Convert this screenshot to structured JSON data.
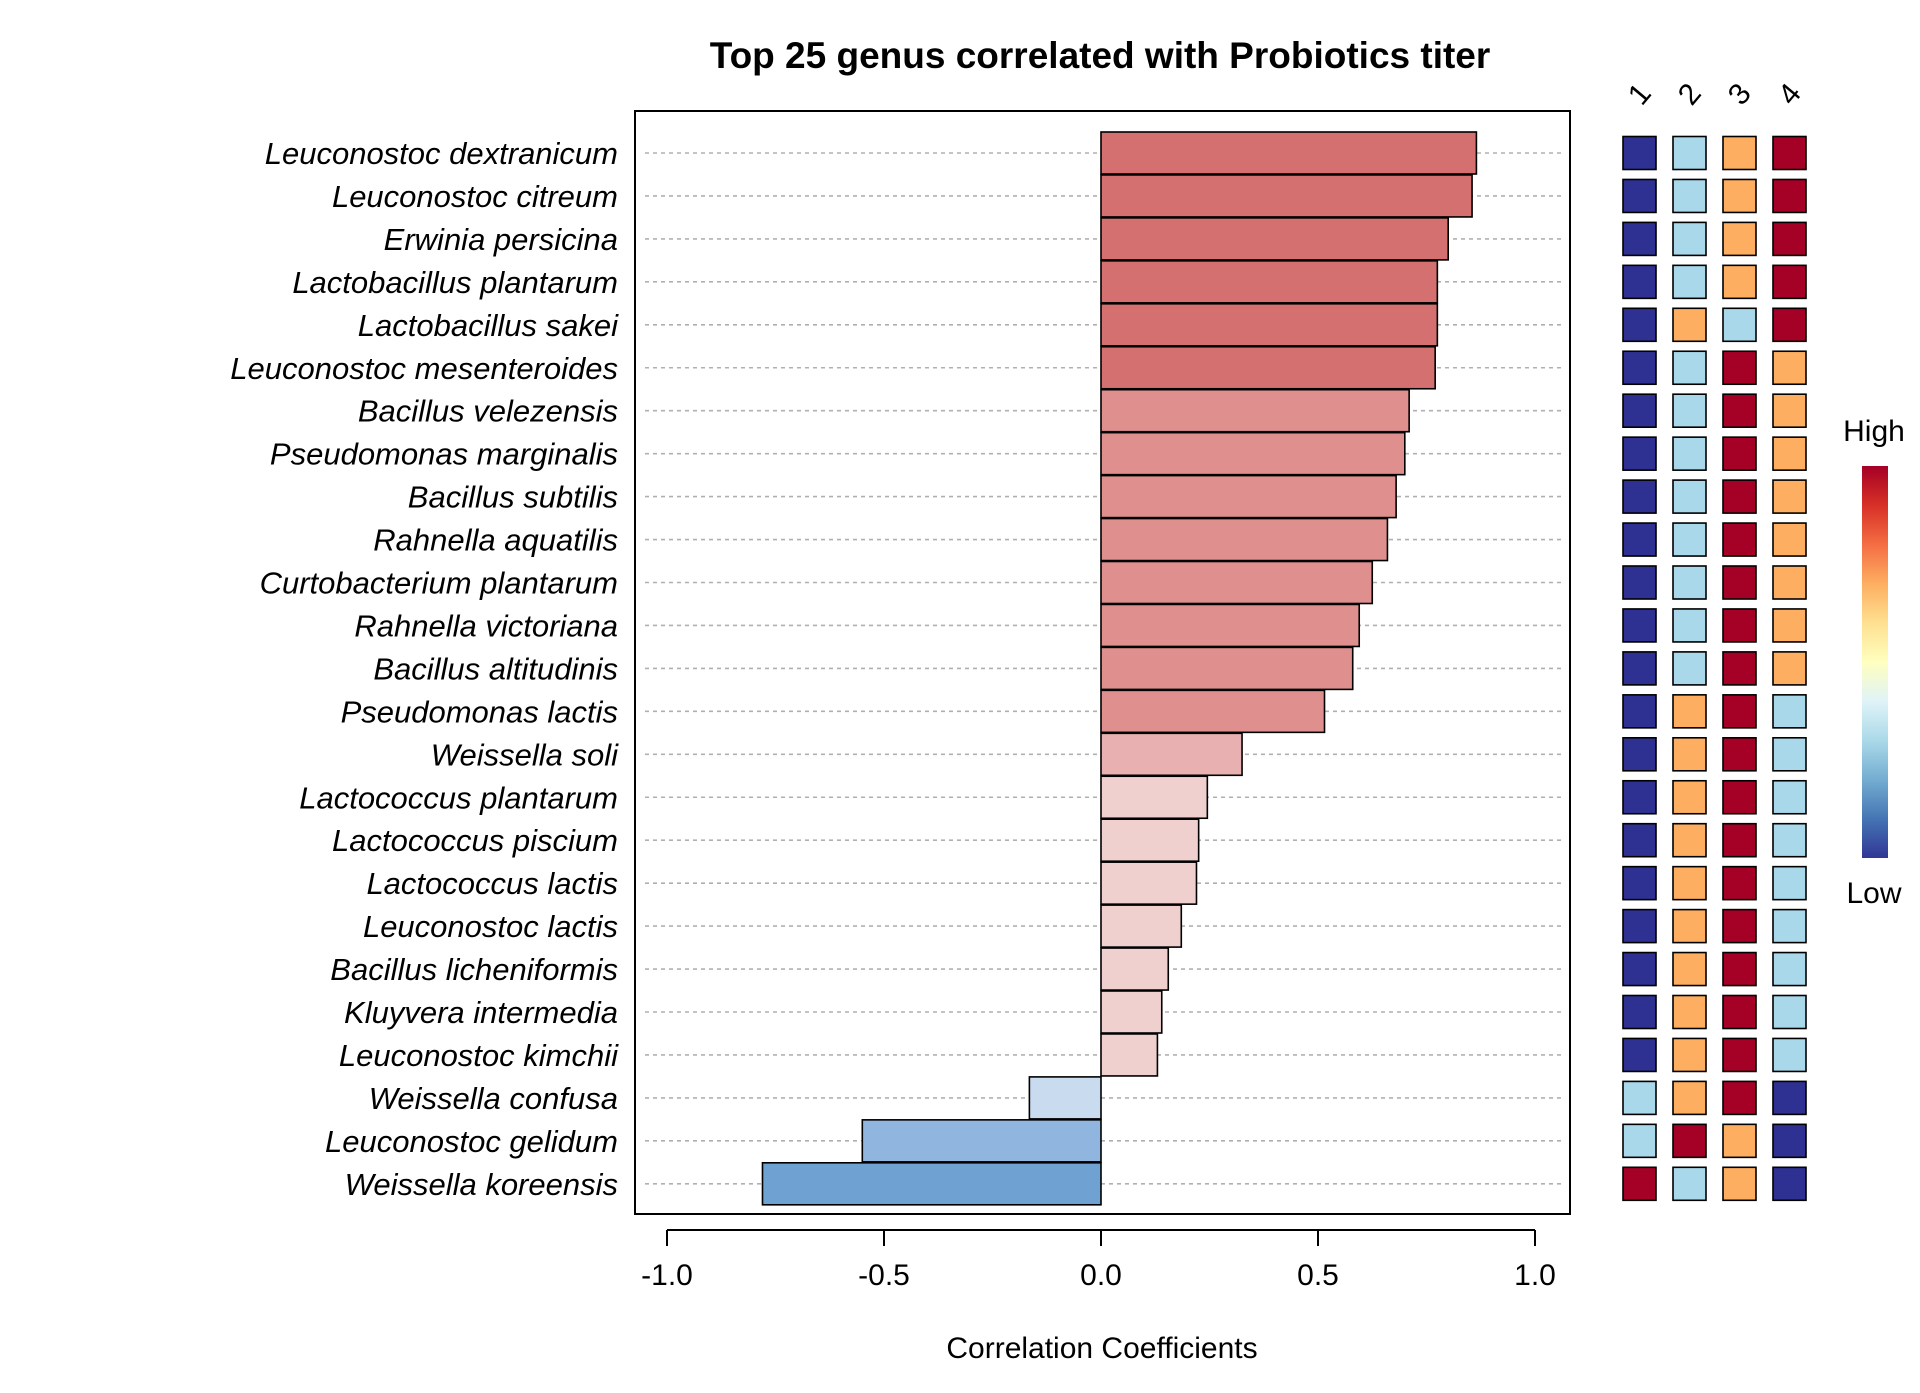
{
  "chart_data": {
    "type": "bar",
    "orientation": "horizontal",
    "title": "Top 25 genus correlated with Probiotics titer",
    "xlabel": "Correlation Coefficients",
    "ylabel": "",
    "xlim": [
      -1.0,
      1.0
    ],
    "x_ticks": [
      "-1.0",
      "-0.5",
      "0.0",
      "0.5",
      "1.0"
    ],
    "x_tick_values": [
      -1.0,
      -0.5,
      0.0,
      0.5,
      1.0
    ],
    "grid": "horizontal dotted",
    "categories": [
      "Leuconostoc dextranicum",
      "Leuconostoc citreum",
      "Erwinia persicina",
      "Lactobacillus plantarum",
      "Lactobacillus sakei",
      "Leuconostoc mesenteroides",
      "Bacillus velezensis",
      "Pseudomonas marginalis",
      "Bacillus subtilis",
      "Rahnella aquatilis",
      "Curtobacterium plantarum",
      "Rahnella victoriana",
      "Bacillus altitudinis",
      "Pseudomonas lactis",
      "Weissella soli",
      "Lactococcus plantarum",
      "Lactococcus piscium",
      "Lactococcus lactis",
      "Leuconostoc lactis",
      "Bacillus licheniformis",
      "Kluyvera intermedia",
      "Leuconostoc kimchii",
      "Weissella confusa",
      "Leuconostoc gelidum",
      "Weissella koreensis"
    ],
    "values": [
      0.865,
      0.855,
      0.8,
      0.775,
      0.775,
      0.77,
      0.71,
      0.7,
      0.68,
      0.66,
      0.625,
      0.595,
      0.58,
      0.515,
      0.325,
      0.245,
      0.225,
      0.22,
      0.185,
      0.155,
      0.14,
      0.13,
      -0.165,
      -0.55,
      -0.78
    ],
    "heatmap": {
      "columns": [
        "1",
        "2",
        "3",
        "4"
      ],
      "levels": {
        "1": "#2e3192",
        "2": "#a8d8ea",
        "3": "#fdae61",
        "4": "#a50026"
      },
      "rows": [
        [
          1,
          2,
          3,
          4
        ],
        [
          1,
          2,
          3,
          4
        ],
        [
          1,
          2,
          3,
          4
        ],
        [
          1,
          2,
          3,
          4
        ],
        [
          1,
          3,
          2,
          4
        ],
        [
          1,
          2,
          4,
          3
        ],
        [
          1,
          2,
          4,
          3
        ],
        [
          1,
          2,
          4,
          3
        ],
        [
          1,
          2,
          4,
          3
        ],
        [
          1,
          2,
          4,
          3
        ],
        [
          1,
          2,
          4,
          3
        ],
        [
          1,
          2,
          4,
          3
        ],
        [
          1,
          2,
          4,
          3
        ],
        [
          1,
          3,
          4,
          2
        ],
        [
          1,
          3,
          4,
          2
        ],
        [
          1,
          3,
          4,
          2
        ],
        [
          1,
          3,
          4,
          2
        ],
        [
          1,
          3,
          4,
          2
        ],
        [
          1,
          3,
          4,
          2
        ],
        [
          1,
          3,
          4,
          2
        ],
        [
          1,
          3,
          4,
          2
        ],
        [
          1,
          3,
          4,
          2
        ],
        [
          2,
          3,
          4,
          1
        ],
        [
          2,
          4,
          3,
          1
        ],
        [
          4,
          2,
          3,
          1
        ]
      ]
    },
    "legend": {
      "high_label": "High",
      "low_label": "Low",
      "placement": "right",
      "gradient_colors": [
        "#a50026",
        "#d73027",
        "#f46d43",
        "#fdae61",
        "#fee090",
        "#ffffbf",
        "#e0f3f8",
        "#abd9e9",
        "#74add1",
        "#4575b4",
        "#313695"
      ]
    },
    "bar_color_bins": [
      {
        "min": 0.75,
        "color": "#d47070"
      },
      {
        "min": 0.5,
        "color": "#de8f8e"
      },
      {
        "min": 0.3,
        "color": "#e8b0b0"
      },
      {
        "min": 0.0,
        "color": "#f0cfcf"
      },
      {
        "min": -0.3,
        "color": "#c9dbef"
      },
      {
        "min": -0.6,
        "color": "#90b5de"
      },
      {
        "min": -1.0,
        "color": "#6fa2d3"
      }
    ]
  }
}
